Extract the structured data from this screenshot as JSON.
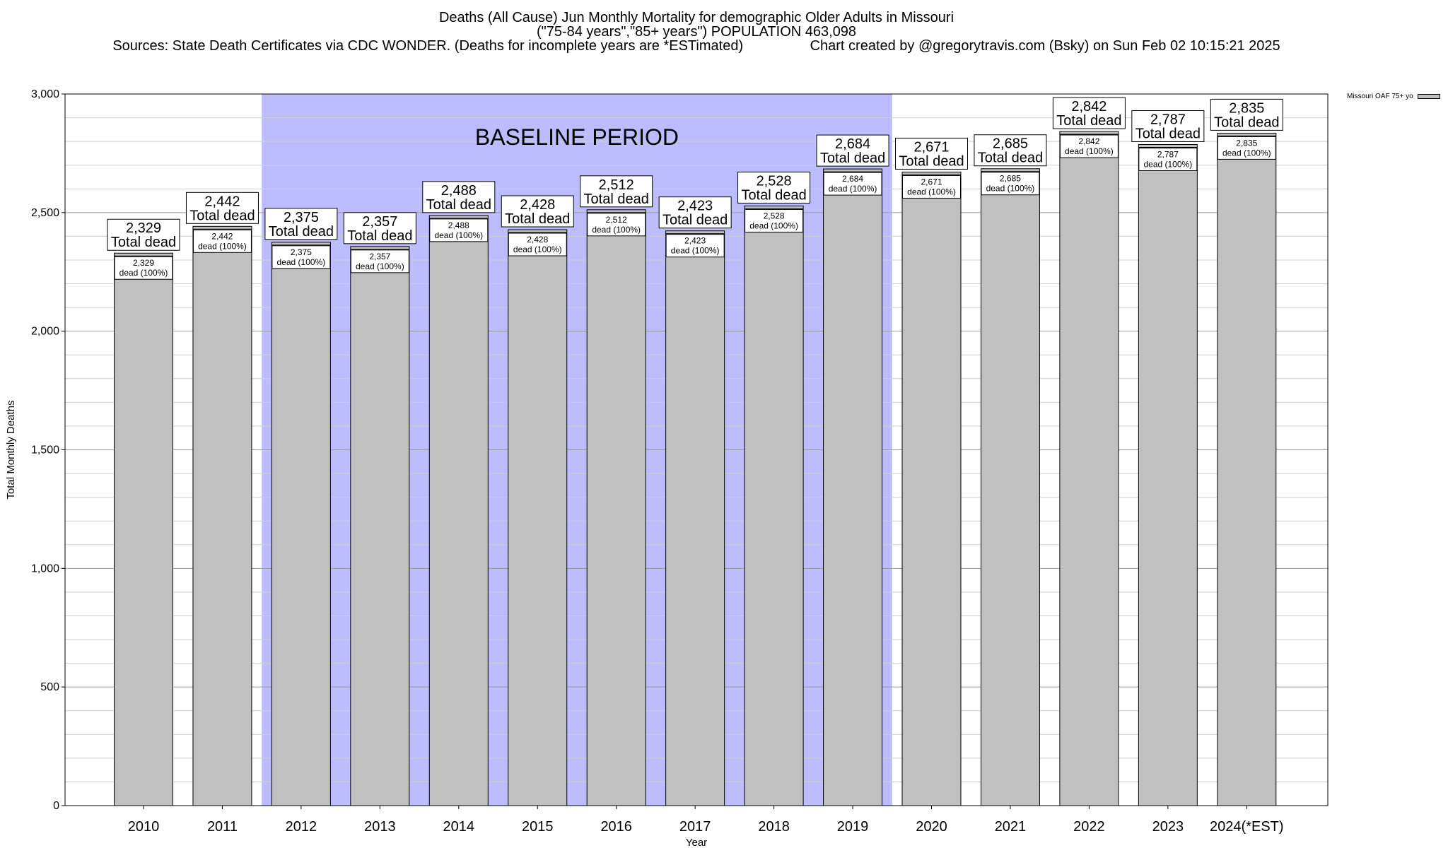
{
  "chart_data": {
    "type": "bar",
    "title": "Deaths (All Cause) Jun Monthly Mortality for demographic Older Adults in Missouri",
    "subtitle": "(\"75-84 years\",\"85+ years\") POPULATION 463,098",
    "sources": "Sources: State Death Certificates via CDC WONDER. (Deaths for incomplete years are *ESTimated)",
    "credit": "Chart created by @gregorytravis.com (Bsky) on Sun Feb 02 10:15:21 2025",
    "xlabel": "Year",
    "ylabel": "Total Monthly Deaths",
    "ylim": [
      0,
      3000
    ],
    "yticks": [
      0,
      500,
      1000,
      1500,
      2000,
      2500,
      3000
    ],
    "ytick_labels": [
      "0",
      "500",
      "1,000",
      "1,500",
      "2,000",
      "2,500",
      "3,000"
    ],
    "categories": [
      "2010",
      "2011",
      "2012",
      "2013",
      "2014",
      "2015",
      "2016",
      "2017",
      "2018",
      "2019",
      "2020",
      "2021",
      "2022",
      "2023",
      "2024(*EST)"
    ],
    "series": [
      {
        "name": "Missouri OAF 75+ yo",
        "color": "#c0c0c0",
        "values": [
          2329,
          2442,
          2375,
          2357,
          2488,
          2428,
          2512,
          2423,
          2528,
          2684,
          2671,
          2685,
          2842,
          2787,
          2835
        ]
      }
    ],
    "value_labels": [
      "2,329",
      "2,442",
      "2,375",
      "2,357",
      "2,488",
      "2,428",
      "2,512",
      "2,423",
      "2,528",
      "2,684",
      "2,671",
      "2,685",
      "2,842",
      "2,787",
      "2,835"
    ],
    "big_label_suffix": "Total dead",
    "small_label_suffix": "dead (100%)",
    "baseline": {
      "label": "BASELINE PERIOD",
      "from": "2012",
      "to": "2019",
      "color": "#bcbcff"
    },
    "grid": true,
    "legend_position": "top-right"
  }
}
